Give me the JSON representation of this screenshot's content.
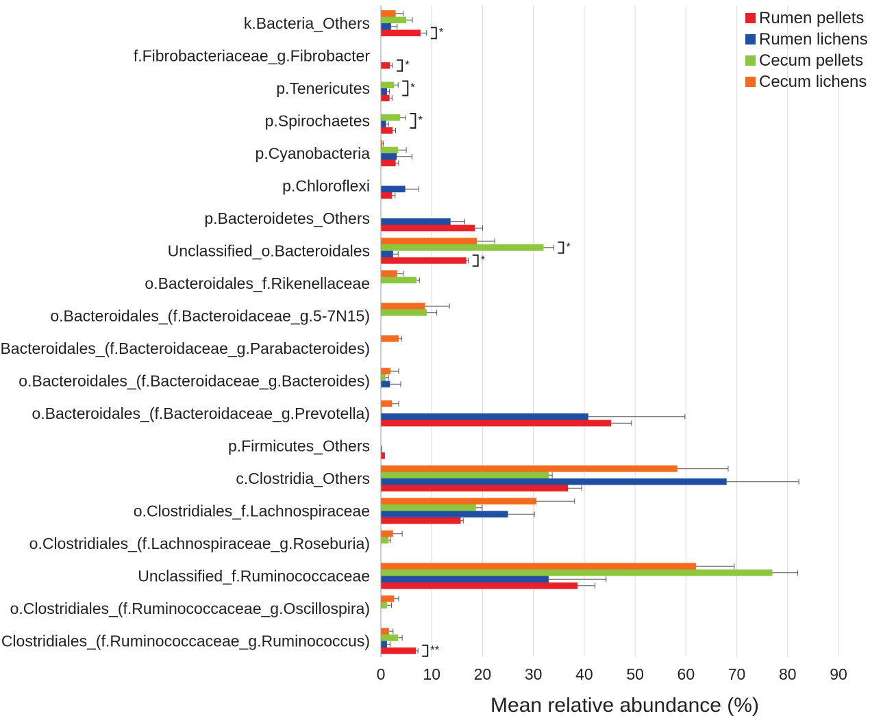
{
  "chart_data": {
    "type": "bar",
    "orientation": "horizontal",
    "xlabel": "Mean relative abundance (%)",
    "ylabel": "",
    "xlim": [
      0,
      90
    ],
    "xticks": [
      0,
      10,
      20,
      30,
      40,
      50,
      60,
      70,
      80,
      90
    ],
    "grid": "vertical",
    "legend_position": "top-right",
    "series": [
      {
        "name": "Cecum lichens",
        "color": "#f26b1f"
      },
      {
        "name": "Cecum pellets",
        "color": "#8dc63f"
      },
      {
        "name": "Rumen lichens",
        "color": "#1f4ea3"
      },
      {
        "name": "Rumen pellets",
        "color": "#e8202a"
      }
    ],
    "legend_order": [
      "Rumen pellets",
      "Rumen lichens",
      "Cecum pellets",
      "Cecum lichens"
    ],
    "categories": [
      {
        "label": "k.Bacteria_Others",
        "values": [
          2.9,
          5.0,
          2.0,
          7.8
        ],
        "errors": [
          1.5,
          1.2,
          1.2,
          1.2
        ],
        "sig": [
          {
            "series": 3,
            "text": "*"
          }
        ]
      },
      {
        "label": "f.Fibrobacteriaceae_g.Fibrobacter",
        "values": [
          0,
          0,
          0,
          1.8
        ],
        "errors": [
          0,
          0,
          0,
          0.5
        ],
        "sig": [
          {
            "series": 3,
            "text": "*"
          }
        ]
      },
      {
        "label": "p.Tenericutes",
        "values": [
          0,
          2.6,
          1.2,
          1.7
        ],
        "errors": [
          0,
          0.8,
          0.5,
          0.5
        ],
        "sig": [
          {
            "series": [
              1,
              2
            ],
            "text": "*"
          }
        ]
      },
      {
        "label": "p.Spirochaetes",
        "values": [
          0,
          3.8,
          1.0,
          2.3
        ],
        "errors": [
          0,
          1.1,
          0.5,
          0.6
        ],
        "sig": [
          {
            "series": [
              1,
              2
            ],
            "text": "*"
          }
        ]
      },
      {
        "label": "p.Cyanobacteria",
        "values": [
          0.3,
          3.4,
          3.1,
          2.9
        ],
        "errors": [
          0.2,
          1.6,
          3.0,
          0.6
        ],
        "sig": []
      },
      {
        "label": "p.Chloroflexi",
        "values": [
          0,
          0,
          4.8,
          2.2
        ],
        "errors": [
          0,
          0,
          2.6,
          0.6
        ],
        "sig": []
      },
      {
        "label": "p.Bacteroidetes_Others",
        "values": [
          0,
          0,
          13.7,
          18.5
        ],
        "errors": [
          0,
          0,
          2.8,
          1.5
        ],
        "sig": []
      },
      {
        "label": "Unclassified_o.Bacteroidales",
        "values": [
          18.9,
          32.0,
          2.4,
          16.8
        ],
        "errors": [
          3.5,
          2.0,
          1.0,
          0.4
        ],
        "sig": [
          {
            "series": 1,
            "text": "*"
          },
          {
            "series": 3,
            "text": "*"
          }
        ]
      },
      {
        "label": "o.Bacteroidales_f.Rikenellaceae",
        "values": [
          3.2,
          7.0,
          0,
          0
        ],
        "errors": [
          1.2,
          0.6,
          0,
          0
        ],
        "sig": []
      },
      {
        "label": "o.Bacteroidales_(f.Bacteroidaceae_g.5-7N15)",
        "values": [
          8.7,
          9.0,
          0,
          0
        ],
        "errors": [
          4.8,
          2.0,
          0,
          0
        ],
        "sig": []
      },
      {
        "label": "o.Bacteroidales_(f.Bacteroidaceae_g.Parabacteroides)",
        "values": [
          3.5,
          0,
          0,
          0
        ],
        "errors": [
          0.6,
          0,
          0,
          0
        ],
        "sig": []
      },
      {
        "label": "o.Bacteroidales_(f.Bacteroidaceae_g.Bacteroides)",
        "values": [
          1.9,
          0.9,
          1.8,
          0
        ],
        "errors": [
          1.6,
          0.6,
          2.1,
          0
        ],
        "sig": []
      },
      {
        "label": "o.Bacteroidales_(f.Bacteroidaceae_g.Prevotella)",
        "values": [
          2.2,
          0.2,
          40.8,
          45.3
        ],
        "errors": [
          1.3,
          0,
          19.0,
          4.0
        ],
        "sig": []
      },
      {
        "label": "p.Firmicutes_Others",
        "values": [
          0,
          0,
          0.2,
          0.8
        ],
        "errors": [
          0,
          0,
          0,
          0
        ],
        "sig": []
      },
      {
        "label": "c.Clostridia_Others",
        "values": [
          58.3,
          33.0,
          68.0,
          36.8
        ],
        "errors": [
          10.0,
          0.7,
          14.2,
          2.7
        ],
        "sig": []
      },
      {
        "label": "o.Clostridiales_f.Lachnospiraceae",
        "values": [
          30.6,
          18.7,
          25.0,
          15.7
        ],
        "errors": [
          7.5,
          1.2,
          5.2,
          0.5
        ],
        "sig": []
      },
      {
        "label": "o.Clostridiales_(f.Lachnospiraceae_g.Roseburia)",
        "values": [
          2.4,
          1.5,
          0,
          0
        ],
        "errors": [
          1.8,
          0.4,
          0,
          0
        ],
        "sig": []
      },
      {
        "label": "Unclassified_f.Ruminococcaceae",
        "values": [
          62.0,
          77.0,
          33.0,
          38.7
        ],
        "errors": [
          7.5,
          5.0,
          11.3,
          3.4
        ],
        "sig": []
      },
      {
        "label": "o.Clostridiales_(f.Ruminococcaceae_g.Oscillospira)",
        "values": [
          2.6,
          1.2,
          0,
          0
        ],
        "errors": [
          0.9,
          0.9,
          0,
          0
        ],
        "sig": []
      },
      {
        "label": "o.Clostridiales_(f.Ruminococcaceae_g.Ruminococcus)",
        "values": [
          1.6,
          3.4,
          1.2,
          6.9
        ],
        "errors": [
          0.8,
          0.8,
          0.6,
          0.4
        ],
        "sig": [
          {
            "series": 3,
            "text": "**"
          }
        ]
      }
    ]
  }
}
